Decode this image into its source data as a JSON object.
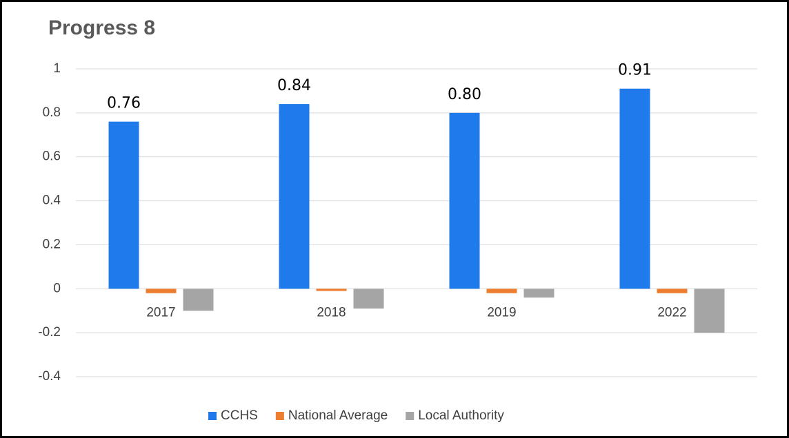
{
  "chart_data": {
    "type": "bar",
    "title": "Progress 8",
    "categories": [
      "2017",
      "2018",
      "2019",
      "2022"
    ],
    "series": [
      {
        "name": "CCHS",
        "color": "#1f7aec",
        "values": [
          0.76,
          0.84,
          0.8,
          0.91
        ],
        "value_labels": [
          "0.76",
          "0.84",
          "0.80",
          "0.91"
        ]
      },
      {
        "name": "National Average",
        "color": "#ed7d31",
        "values": [
          -0.02,
          -0.01,
          -0.02,
          -0.02
        ]
      },
      {
        "name": "Local Authority",
        "color": "#a5a5a5",
        "values": [
          -0.1,
          -0.09,
          -0.04,
          -0.2
        ]
      }
    ],
    "ylim": [
      -0.4,
      1
    ],
    "yticks": [
      1,
      0.8,
      0.6,
      0.4,
      0.2,
      0,
      -0.2,
      -0.4
    ],
    "grid": true,
    "legend": "bottom"
  }
}
